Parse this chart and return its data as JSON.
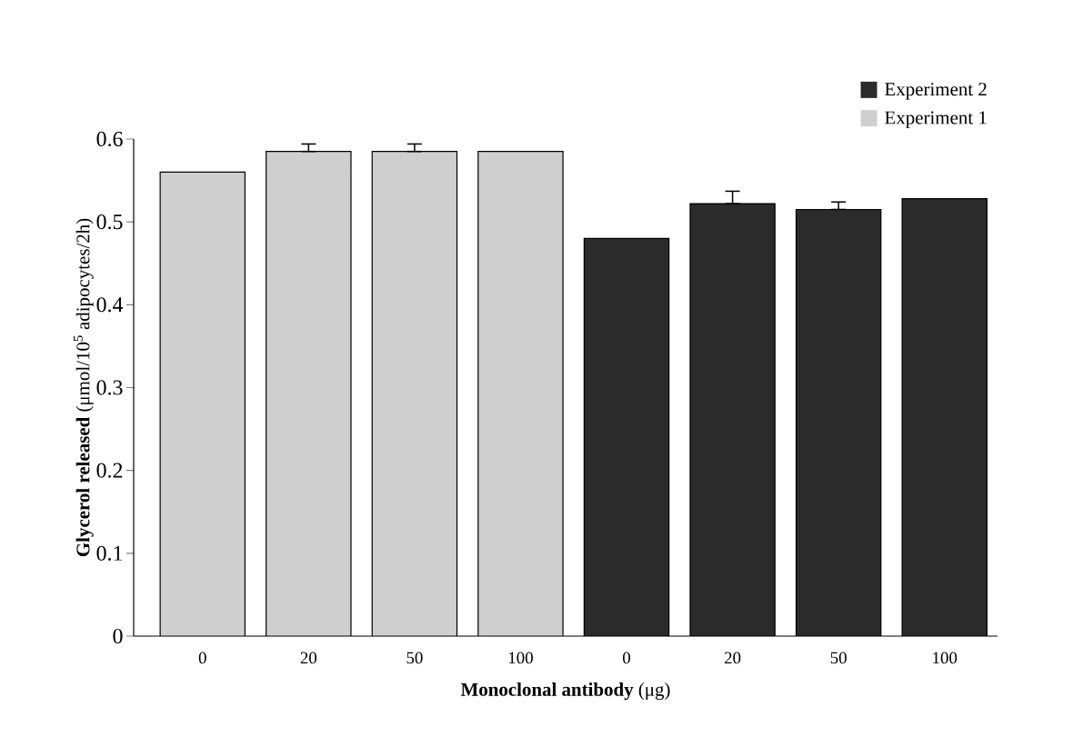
{
  "chart_data": {
    "type": "bar",
    "xlabel": "**Monoclonal antibody**    (μg)",
    "ylabel": "**Glycerol released** (μmol/10$^{5}$ adipocytes/2h)",
    "categories": [
      "0",
      "20",
      "50",
      "100",
      "0",
      "20",
      "50",
      "100"
    ],
    "series": [
      {
        "name": "Experiment 2",
        "color": "#2b2b2b",
        "values": [
          null,
          null,
          null,
          null,
          0.48,
          0.522,
          0.515,
          0.528
        ],
        "errors": [
          null,
          null,
          null,
          null,
          null,
          [
            0.522,
            0.537
          ],
          [
            0.515,
            0.524
          ],
          null
        ]
      },
      {
        "name": "Experiment 1",
        "color": "#cfcfcf",
        "values": [
          0.56,
          0.585,
          0.585,
          0.585,
          null,
          null,
          null,
          null
        ],
        "errors": [
          null,
          [
            0.585,
            0.594
          ],
          [
            0.585,
            0.594
          ],
          null,
          null,
          null,
          null,
          null
        ]
      }
    ],
    "ylim": [
      0,
      0.6
    ],
    "yticks": [
      0,
      0.1,
      0.2,
      0.3,
      0.4,
      0.5,
      0.6
    ],
    "legend": "top right"
  }
}
